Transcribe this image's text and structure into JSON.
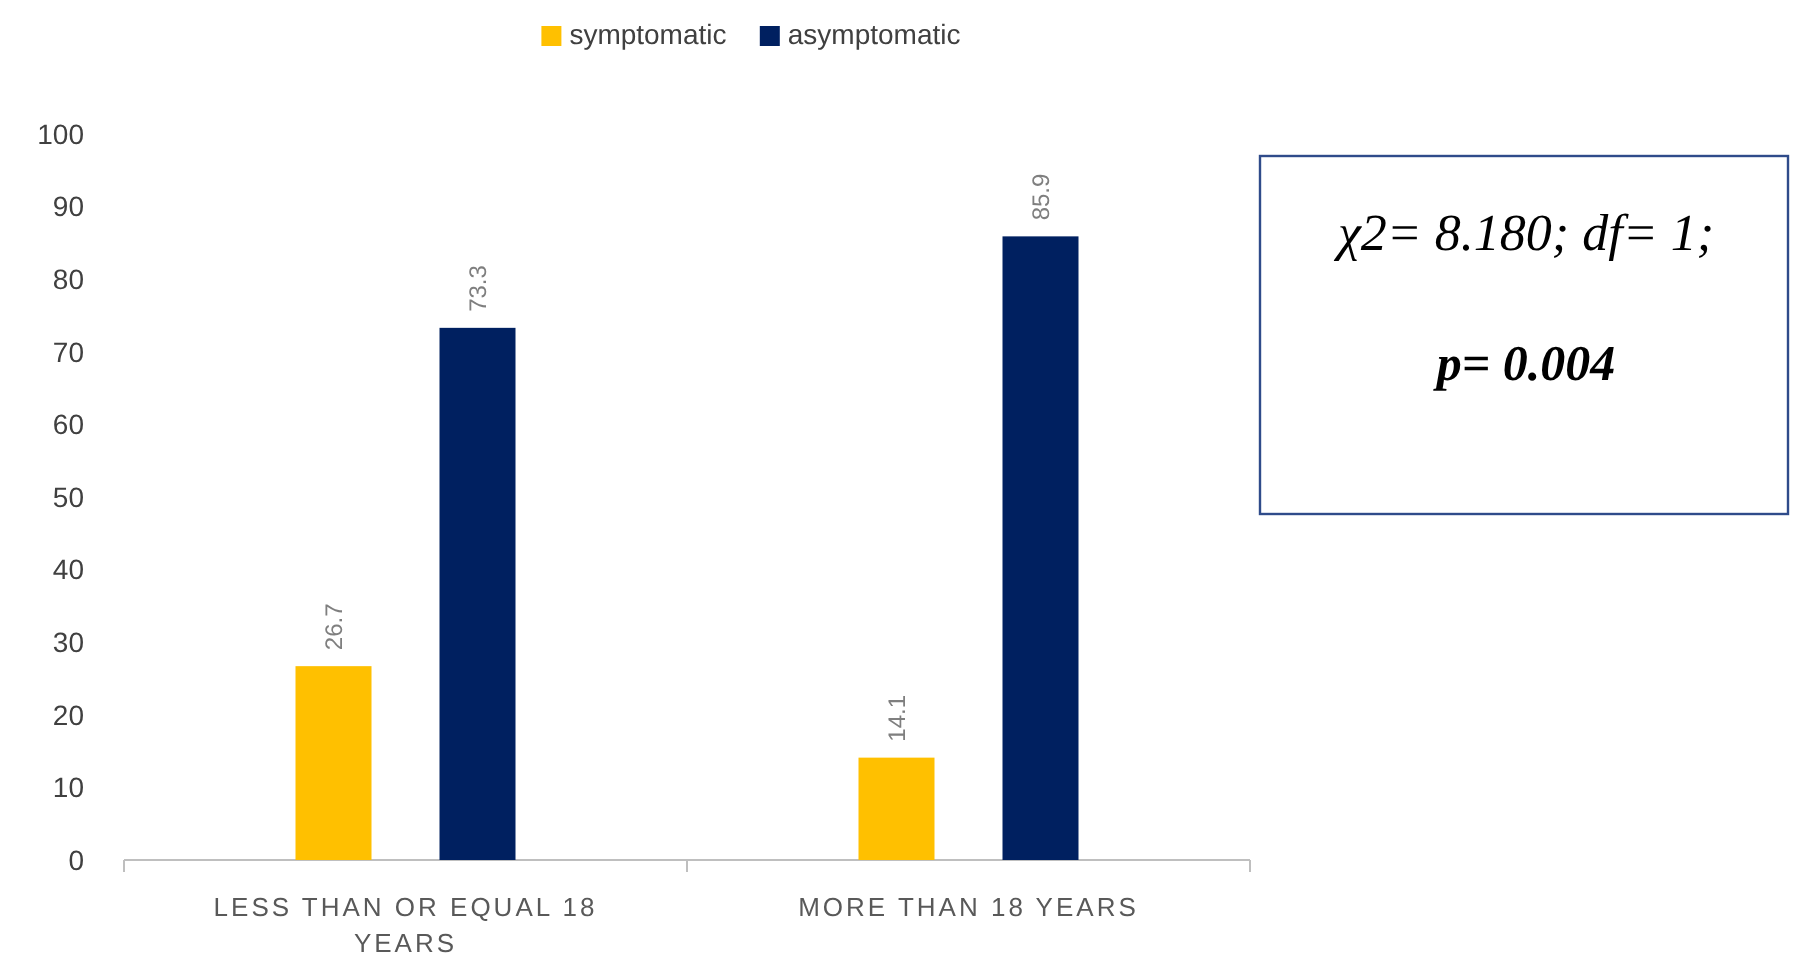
{
  "chart_data": {
    "type": "bar",
    "categories": [
      "LESS THAN OR EQUAL 18 YEARS",
      "MORE THAN 18 YEARS"
    ],
    "series": [
      {
        "name": "symptomatic",
        "color": "#ffc000",
        "values": [
          26.7,
          14.1
        ]
      },
      {
        "name": "asymptomatic",
        "color": "#002060",
        "values": [
          73.3,
          85.9
        ]
      }
    ],
    "ylim": [
      0,
      100
    ],
    "yticks": [
      0,
      10,
      20,
      30,
      40,
      50,
      60,
      70,
      80,
      90,
      100
    ],
    "grid": false,
    "legend": "top",
    "data_labels": true,
    "annotations": [
      "χ2= 8.180; df= 1;",
      "p= 0.004"
    ]
  }
}
